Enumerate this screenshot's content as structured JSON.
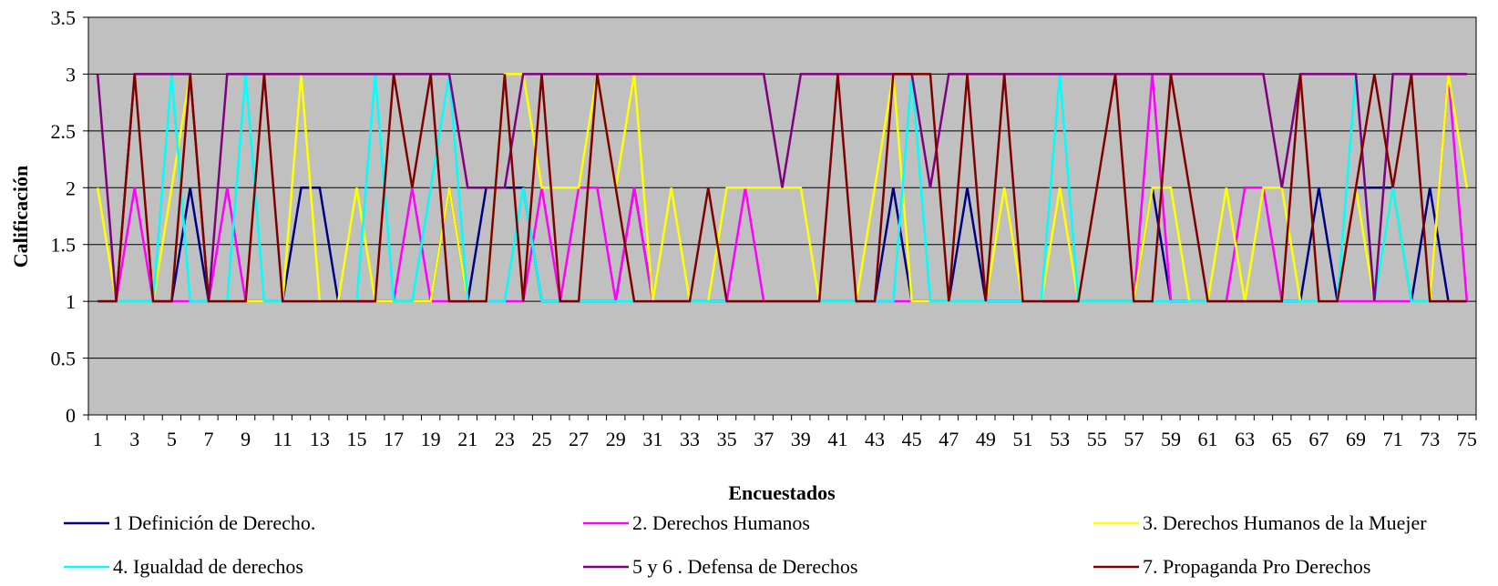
{
  "chart_data": {
    "type": "line",
    "title": "",
    "xlabel": "Encuestados",
    "ylabel": "Calificación",
    "ylim": [
      0,
      3.5
    ],
    "yticks": [
      "0",
      "0.5",
      "1",
      "1.5",
      "2",
      "2.5",
      "3",
      "3.5"
    ],
    "xlim": [
      1,
      75
    ],
    "xticks": [
      "1",
      "3",
      "5",
      "7",
      "9",
      "11",
      "13",
      "15",
      "17",
      "19",
      "21",
      "23",
      "25",
      "27",
      "29",
      "31",
      "33",
      "35",
      "37",
      "39",
      "41",
      "43",
      "45",
      "47",
      "49",
      "51",
      "53",
      "55",
      "57",
      "59",
      "61",
      "63",
      "65",
      "67",
      "69",
      "71",
      "73",
      "75"
    ],
    "grid": "horizontal",
    "plot_background": "#c0c0c0",
    "legend_position": "bottom",
    "series": [
      {
        "name": "1 Definición de Derecho.",
        "color": "#000080",
        "values": [
          1,
          1,
          1,
          1,
          1,
          2,
          1,
          1,
          1,
          1,
          1,
          2,
          2,
          1,
          1,
          1,
          1,
          1,
          1,
          2,
          1,
          2,
          2,
          2,
          1,
          1,
          1,
          1,
          1,
          2,
          1,
          1,
          1,
          1,
          1,
          1,
          1,
          1,
          1,
          1,
          1,
          1,
          1,
          2,
          1,
          1,
          1,
          2,
          1,
          1,
          1,
          1,
          1,
          1,
          1,
          1,
          1,
          2,
          1,
          1,
          1,
          1,
          1,
          1,
          1,
          1,
          2,
          1,
          2,
          2,
          2,
          1,
          2,
          1,
          1
        ]
      },
      {
        "name": "2.  Derechos Humanos",
        "color": "#ff00ff",
        "values": [
          1,
          1,
          2,
          1,
          1,
          1,
          1,
          2,
          1,
          1,
          1,
          1,
          1,
          1,
          1,
          1,
          1,
          2,
          1,
          1,
          1,
          1,
          1,
          1,
          2,
          1,
          2,
          2,
          1,
          2,
          1,
          1,
          1,
          1,
          1,
          2,
          1,
          1,
          1,
          1,
          1,
          1,
          1,
          1,
          1,
          1,
          1,
          1,
          1,
          1,
          1,
          1,
          1,
          1,
          1,
          1,
          1,
          3,
          1,
          1,
          1,
          1,
          2,
          2,
          1,
          1,
          1,
          1,
          1,
          1,
          1,
          1,
          1,
          3,
          1
        ]
      },
      {
        "name": "3. Derechos Humanos de la Muejer",
        "color": "#ffff00",
        "values": [
          2,
          1,
          1,
          1,
          2,
          3,
          1,
          1,
          1,
          1,
          1,
          3,
          1,
          1,
          2,
          1,
          1,
          1,
          1,
          2,
          1,
          1,
          3,
          3,
          2,
          2,
          2,
          3,
          2,
          3,
          1,
          2,
          1,
          1,
          2,
          2,
          2,
          2,
          2,
          1,
          1,
          1,
          2,
          3,
          1,
          1,
          1,
          1,
          1,
          2,
          1,
          1,
          2,
          1,
          1,
          1,
          1,
          2,
          2,
          1,
          1,
          2,
          1,
          2,
          2,
          1,
          1,
          1,
          2,
          1,
          2,
          1,
          1,
          3,
          2
        ]
      },
      {
        "name": "4. Igualdad de derechos",
        "color": "#00ffff",
        "values": [
          1,
          1,
          1,
          1,
          3,
          1,
          1,
          1,
          3,
          1,
          1,
          1,
          1,
          1,
          1,
          3,
          1,
          1,
          2,
          3,
          1,
          1,
          1,
          2,
          1,
          1,
          1,
          1,
          1,
          1,
          1,
          1,
          1,
          1,
          1,
          1,
          1,
          1,
          1,
          1,
          1,
          1,
          1,
          1,
          3,
          1,
          1,
          1,
          1,
          1,
          1,
          1,
          3,
          1,
          1,
          1,
          1,
          1,
          1,
          1,
          1,
          1,
          1,
          1,
          1,
          1,
          1,
          1,
          3,
          1,
          2,
          1,
          1,
          1,
          1
        ]
      },
      {
        "name": "5 y 6 . Defensa de Derechos",
        "color": "#800080",
        "values": [
          3,
          1,
          3,
          3,
          3,
          3,
          1,
          3,
          3,
          3,
          3,
          3,
          3,
          3,
          3,
          3,
          3,
          3,
          3,
          3,
          2,
          2,
          2,
          3,
          3,
          3,
          3,
          3,
          3,
          3,
          3,
          3,
          3,
          3,
          3,
          3,
          3,
          2,
          3,
          3,
          3,
          3,
          3,
          3,
          3,
          2,
          3,
          3,
          3,
          3,
          3,
          3,
          3,
          3,
          3,
          3,
          3,
          3,
          3,
          3,
          3,
          3,
          3,
          3,
          2,
          3,
          3,
          3,
          3,
          1,
          3,
          3,
          3,
          3,
          3
        ]
      },
      {
        "name": "7. Propaganda Pro Derechos",
        "color": "#800000",
        "values": [
          1,
          1,
          3,
          1,
          1,
          3,
          1,
          1,
          1,
          3,
          1,
          1,
          1,
          1,
          1,
          1,
          3,
          2,
          3,
          1,
          1,
          1,
          3,
          1,
          3,
          1,
          1,
          3,
          2,
          1,
          1,
          1,
          1,
          2,
          1,
          1,
          1,
          1,
          1,
          1,
          3,
          1,
          1,
          3,
          3,
          3,
          1,
          3,
          1,
          3,
          1,
          1,
          1,
          1,
          2,
          3,
          1,
          1,
          3,
          2,
          1,
          1,
          1,
          1,
          1,
          3,
          1,
          1,
          2,
          3,
          2,
          3,
          1,
          1,
          1
        ]
      }
    ]
  }
}
